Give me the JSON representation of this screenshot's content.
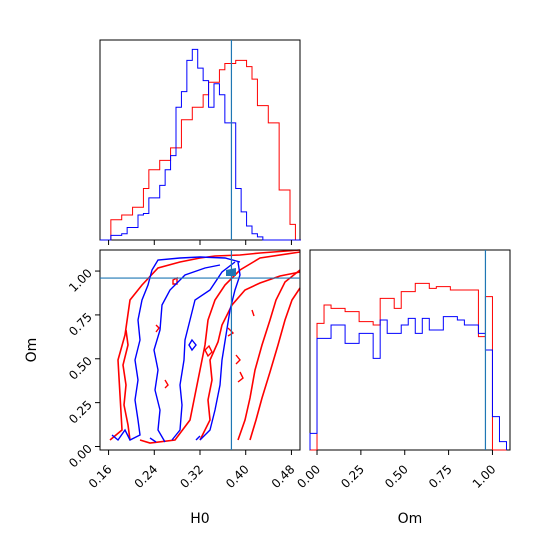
{
  "chart_data": {
    "type": "corner",
    "parameters": [
      "H0",
      "Om"
    ],
    "truth": {
      "H0": 0.375,
      "Om": 0.96
    },
    "colors": {
      "red": "#ff0000",
      "blue": "#0000ff",
      "truth": "#1f77b4"
    },
    "panels": [
      {
        "name": "H0-marginal",
        "type": "histogram",
        "xlim": [
          0.145,
          0.495
        ],
        "bins": [
          0.145,
          0.1545,
          0.164,
          0.1735,
          0.183,
          0.1925,
          0.202,
          0.2115,
          0.221,
          0.2305,
          0.24,
          0.2495,
          0.259,
          0.2685,
          0.278,
          0.2875,
          0.297,
          0.3065,
          0.316,
          0.3255,
          0.335,
          0.3445,
          0.354,
          0.3635,
          0.373,
          0.3825,
          0.392,
          0.4015,
          0.411,
          0.4205,
          0.43,
          0.4395,
          0.449,
          0.4585,
          0.468,
          0.4775,
          0.487,
          0.4965
        ],
        "series": [
          {
            "name": "",
            "color": "#ff0000",
            "values": [
              0,
              0,
              1.3,
              1.3,
              1.6,
              1.6,
              2.1,
              2.1,
              3.3,
              4.5,
              4.5,
              5.1,
              5.1,
              5.9,
              5.9,
              7.7,
              7.7,
              8.5,
              8.5,
              9.3,
              10.1,
              10.1,
              10.9,
              11.3,
              11.3,
              11.5,
              11.5,
              11.1,
              10.3,
              8.6,
              8.6,
              7.5,
              7.5,
              3.2,
              3.2,
              1.0,
              0
            ]
          },
          {
            "name": "",
            "color": "#0000ff",
            "values": [
              0,
              0,
              0.3,
              0.3,
              0.4,
              0.8,
              0.8,
              1.6,
              1.7,
              2.7,
              2.7,
              3.5,
              4.5,
              5.4,
              8.5,
              9.5,
              11.5,
              12.2,
              11.0,
              10.2,
              8.5,
              10.0,
              9.3,
              7.5,
              7.5,
              3.3,
              1.8,
              0.9,
              0.4,
              0.2,
              0,
              0,
              0,
              0,
              0,
              0,
              0
            ]
          }
        ]
      },
      {
        "name": "H0-Om-joint",
        "type": "contour",
        "xlim": [
          0.145,
          0.495
        ],
        "ylim": [
          -0.02,
          1.12
        ],
        "xlabel": "H0",
        "ylabel": "Om",
        "xticks": [
          "0.16",
          "0.24",
          "0.32",
          "0.40",
          "0.48"
        ],
        "xtick_values": [
          0.16,
          0.24,
          0.32,
          0.4,
          0.48
        ],
        "yticks": [
          "0.00",
          "0.25",
          "0.50",
          "0.75",
          "1.00"
        ],
        "ytick_values": [
          0.0,
          0.25,
          0.5,
          0.75,
          1.0
        ]
      },
      {
        "name": "Om-marginal",
        "type": "histogram",
        "xlim": [
          -0.04,
          1.1
        ],
        "xlabel": "Om",
        "xticks": [
          "0.00",
          "0.25",
          "0.50",
          "0.75",
          "1.00"
        ],
        "xtick_values": [
          0.0,
          0.25,
          0.5,
          0.75,
          1.0
        ],
        "bins": [
          -0.04,
          0.0,
          0.04,
          0.08,
          0.12,
          0.16,
          0.2,
          0.24,
          0.28,
          0.32,
          0.36,
          0.4,
          0.44,
          0.48,
          0.52,
          0.56,
          0.6,
          0.64,
          0.68,
          0.72,
          0.76,
          0.8,
          0.84,
          0.88,
          0.92,
          0.96,
          1.0,
          1.04,
          1.08
        ],
        "series": [
          {
            "name": "",
            "color": "#ff0000",
            "values": [
              0,
              0.76,
              0.87,
              0.85,
              0.85,
              0.83,
              0.83,
              0.77,
              0.77,
              0.75,
              0.91,
              0.91,
              0.85,
              0.95,
              0.95,
              1.0,
              1.0,
              0.97,
              0.98,
              0.98,
              0.96,
              0.96,
              0.96,
              0.96,
              0.68,
              0.92,
              0,
              0
            ]
          },
          {
            "name": "",
            "color": "#0000ff",
            "values": [
              0.1,
              0.67,
              0.67,
              0.75,
              0.75,
              0.64,
              0.64,
              0.7,
              0.7,
              0.55,
              0.78,
              0.7,
              0.7,
              0.75,
              0.79,
              0.7,
              0.79,
              0.72,
              0.72,
              0.8,
              0.8,
              0.78,
              0.75,
              0.75,
              0.7,
              0.6,
              0.2,
              0.05
            ]
          }
        ]
      }
    ]
  }
}
